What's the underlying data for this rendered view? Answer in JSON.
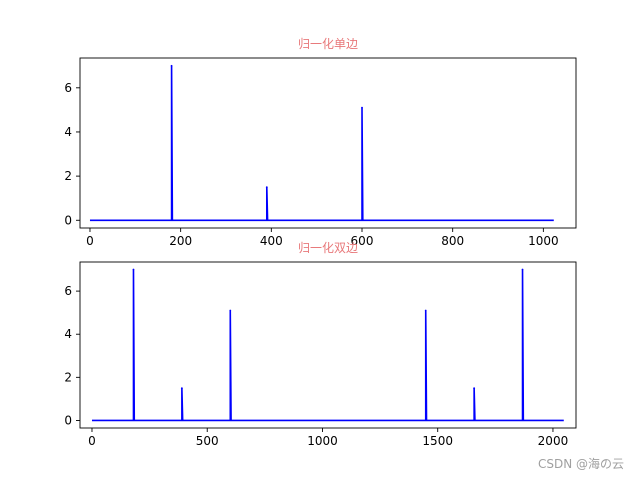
{
  "title_color": "#e8787a",
  "line_color": "#0000ff",
  "watermark": "CSDN @海の云",
  "chart_data": [
    {
      "type": "line",
      "title": "归一化单边",
      "xlabel": "",
      "ylabel": "",
      "xlim": [
        -22,
        1072
      ],
      "ylim": [
        -0.35,
        7.35
      ],
      "xticks": [
        0,
        200,
        400,
        600,
        800,
        1000
      ],
      "yticks": [
        0,
        2,
        4,
        6
      ],
      "x_range": [
        0,
        1023
      ],
      "baseline": 0,
      "spikes": [
        {
          "x": 180,
          "y": 7.0
        },
        {
          "x": 390,
          "y": 1.5
        },
        {
          "x": 600,
          "y": 5.1
        }
      ]
    },
    {
      "type": "line",
      "title": "归一化双边",
      "xlabel": "",
      "ylabel": "",
      "xlim": [
        -52,
        2100
      ],
      "ylim": [
        -0.35,
        7.35
      ],
      "xticks": [
        0,
        500,
        1000,
        1500,
        2000
      ],
      "yticks": [
        0,
        2,
        4,
        6
      ],
      "x_range": [
        0,
        2047
      ],
      "baseline": 0,
      "spikes": [
        {
          "x": 180,
          "y": 7.0
        },
        {
          "x": 390,
          "y": 1.5
        },
        {
          "x": 600,
          "y": 5.1
        },
        {
          "x": 1448,
          "y": 5.1
        },
        {
          "x": 1658,
          "y": 1.5
        },
        {
          "x": 1868,
          "y": 7.0
        }
      ]
    }
  ]
}
